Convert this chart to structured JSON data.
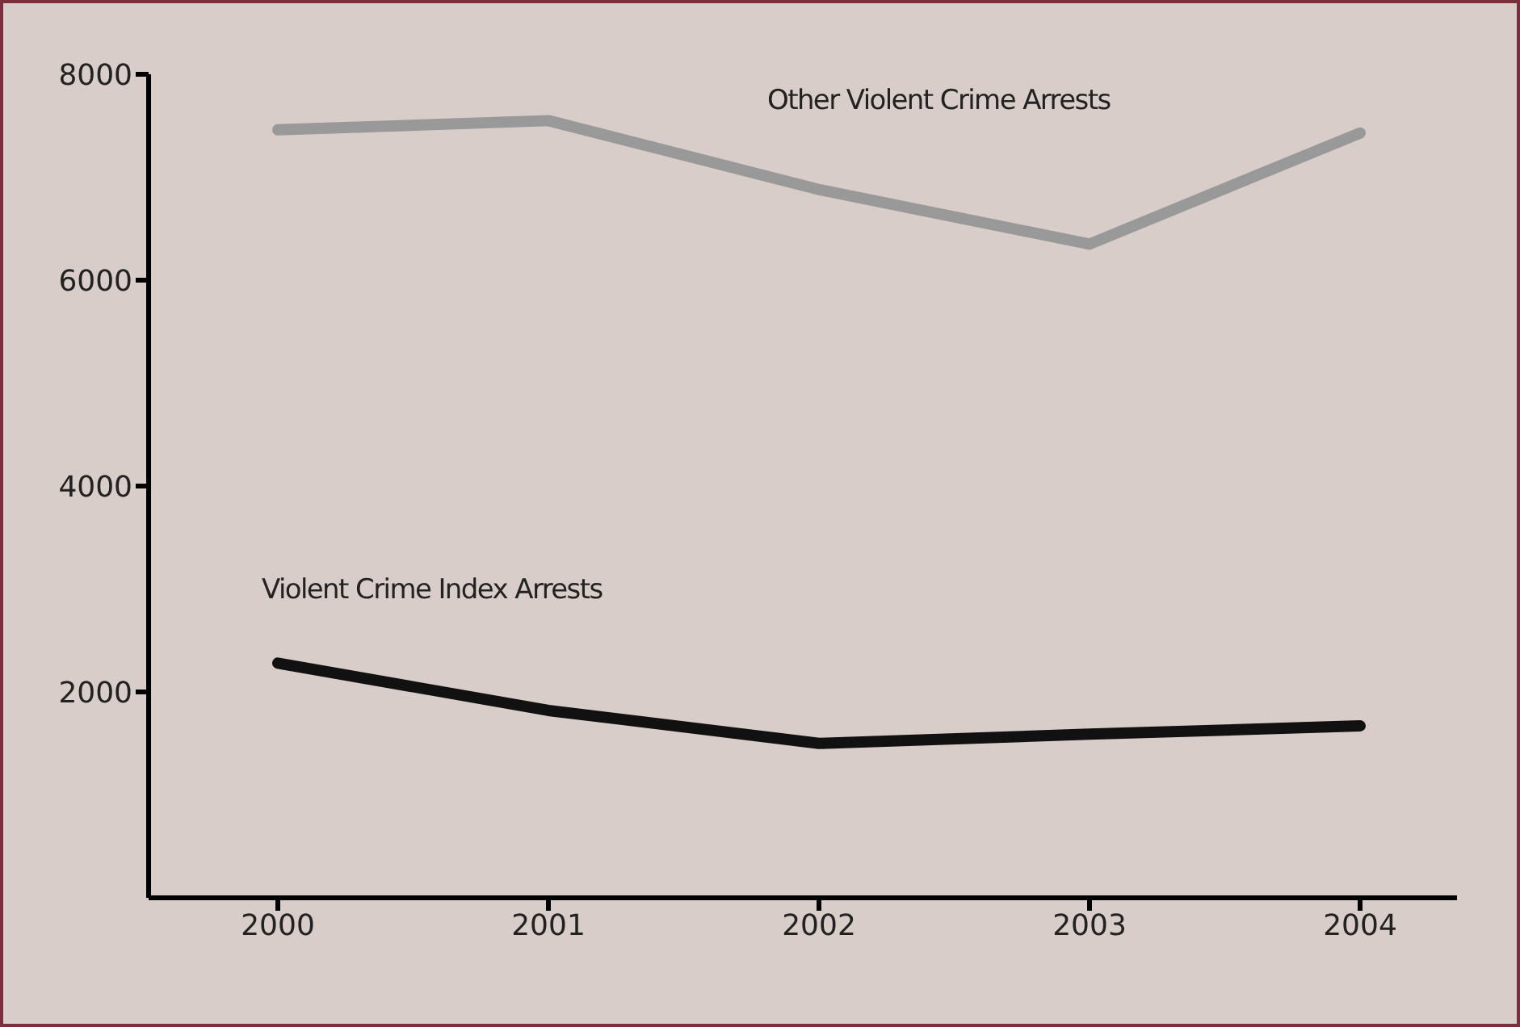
{
  "chart_data": {
    "type": "line",
    "categories": [
      "2000",
      "2001",
      "2002",
      "2003",
      "2004"
    ],
    "series": [
      {
        "name": "Other Violent Crime Arrests",
        "color": "#999999",
        "values": [
          7460,
          7550,
          6880,
          6350,
          7430
        ]
      },
      {
        "name": "Violent Crime Index Arrests",
        "color": "#111111",
        "values": [
          2280,
          1820,
          1500,
          1590,
          1670
        ]
      }
    ],
    "ylim": [
      0,
      8000
    ],
    "yticks": [
      2000,
      4000,
      6000,
      8000
    ],
    "grid": false,
    "legend": false,
    "marker": "none",
    "line_style": "solid"
  }
}
